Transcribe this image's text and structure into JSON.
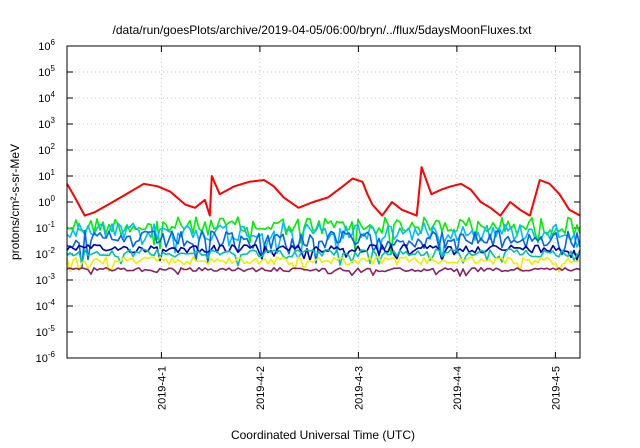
{
  "chart_data": {
    "type": "line",
    "title": "/data/run/goesPlots/archive/2019-04-05/06:00/bryn/../flux/5daysMoonFluxes.txt",
    "xlabel": "Coordinated Universal Time (UTC)",
    "ylabel": "protons/cm²-s-sr-MeV",
    "y_scale": "log",
    "ylim_exponent": [
      -6,
      6
    ],
    "y_ticks": [
      {
        "base": "10",
        "exp": "-6"
      },
      {
        "base": "10",
        "exp": "-5"
      },
      {
        "base": "10",
        "exp": "-4"
      },
      {
        "base": "10",
        "exp": "-3"
      },
      {
        "base": "10",
        "exp": "-2"
      },
      {
        "base": "10",
        "exp": "-1"
      },
      {
        "base": "10",
        "exp": "0"
      },
      {
        "base": "10",
        "exp": "1"
      },
      {
        "base": "10",
        "exp": "2"
      },
      {
        "base": "10",
        "exp": "3"
      },
      {
        "base": "10",
        "exp": "4"
      },
      {
        "base": "10",
        "exp": "5"
      },
      {
        "base": "10",
        "exp": "6"
      }
    ],
    "x_range_days": [
      "2019-03-31T01:00",
      "2019-04-05T06:00"
    ],
    "x_ticks": [
      "2019-4-1",
      "2019-4-2",
      "2019-4-3",
      "2019-4-4",
      "2019-4-5"
    ],
    "grid": true,
    "legend": "none",
    "series": [
      {
        "color": "#ff0000",
        "x_day": [
          0.0,
          0.08,
          0.18,
          0.28,
          0.42,
          0.6,
          0.78,
          0.92,
          1.05,
          1.2,
          1.3,
          1.4,
          1.45,
          1.47,
          1.55,
          1.7,
          1.85,
          2.0,
          2.1,
          2.2,
          2.35,
          2.5,
          2.65,
          2.8,
          2.9,
          3.0,
          3.05,
          3.1,
          3.2,
          3.3,
          3.4,
          3.55,
          3.6,
          3.7,
          3.8,
          3.9,
          4.0,
          4.1,
          4.2,
          4.3,
          4.4,
          4.5,
          4.6,
          4.7,
          4.8,
          4.9,
          5.0,
          5.1,
          5.21
        ],
        "y": [
          5,
          1.5,
          0.3,
          0.4,
          0.8,
          2,
          5,
          4,
          2.5,
          0.8,
          0.6,
          1.2,
          0.3,
          10,
          2,
          4,
          6,
          7,
          4,
          1.5,
          0.6,
          1,
          1.5,
          4,
          8,
          6,
          2,
          0.8,
          0.3,
          1,
          0.5,
          0.3,
          22,
          2,
          3,
          4,
          5,
          3,
          1,
          0.6,
          0.3,
          1,
          0.5,
          0.3,
          7,
          5,
          2,
          0.5,
          0.3
        ]
      },
      {
        "color": "#00ee00",
        "y_level": 0.12
      },
      {
        "color": "#00bbff",
        "y_level": 0.07
      },
      {
        "color": "#0066ee",
        "y_level": 0.035
      },
      {
        "color": "#0000aa",
        "y_level": 0.016
      },
      {
        "color": "#00c0b0",
        "y_level": 0.011
      },
      {
        "color": "#eeee00",
        "y_level": 0.0055
      },
      {
        "color": "#8b2060",
        "y_level": 0.0025
      }
    ]
  }
}
